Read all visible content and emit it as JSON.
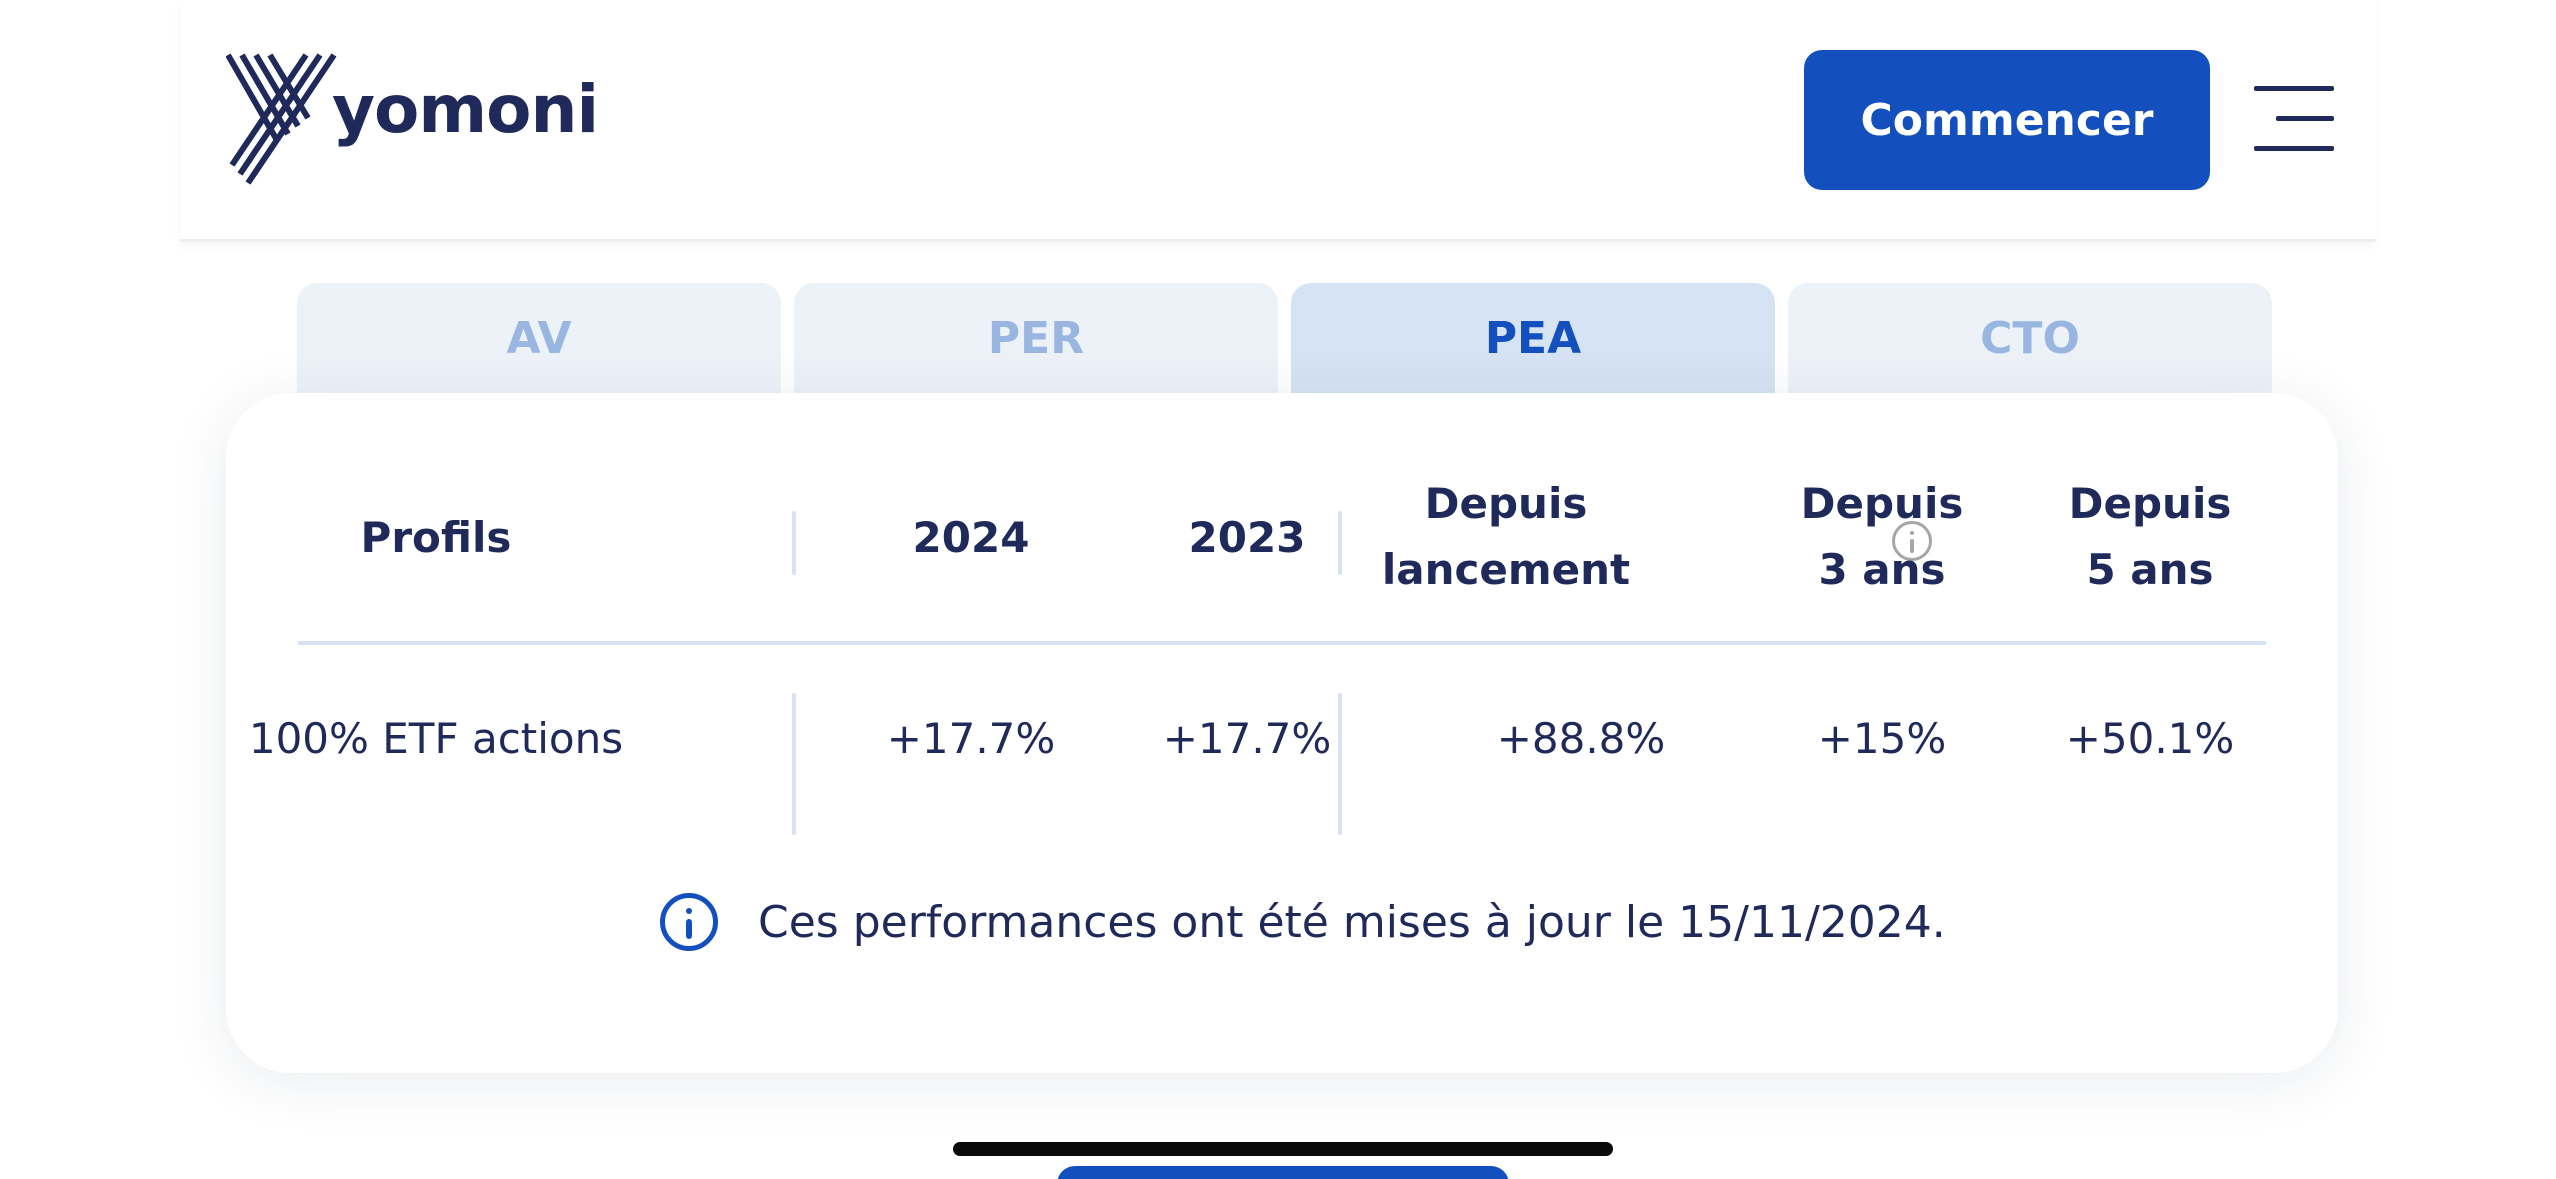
{
  "header": {
    "logo_text": "yomoni",
    "cta_label": "Commencer",
    "menu_icon": "hamburger-icon"
  },
  "tabs": [
    {
      "label": "AV",
      "active": false
    },
    {
      "label": "PER",
      "active": false
    },
    {
      "label": "PEA",
      "active": true
    },
    {
      "label": "CTO",
      "active": false
    }
  ],
  "table": {
    "headers": {
      "profil": "Profils",
      "y2024": "2024",
      "y2023": "2023",
      "lancement_line1": "Depuis",
      "lancement_line2": "lancement",
      "ans3_line1": "Depuis",
      "ans3_line2": "3 ans",
      "ans5_line1": "Depuis",
      "ans5_line2": "5 ans"
    },
    "row": {
      "profil": "100% ETF actions",
      "y2024": "+17.7%",
      "y2023": "+17.7%",
      "lancement": "+88.8%",
      "ans3": "+15%",
      "ans5": "+50.1%"
    }
  },
  "note": {
    "text": "Ces performances ont été mises à jour le 15/11/2024."
  },
  "colors": {
    "primary": "#1350bd",
    "text": "#1f2a5a",
    "tab_bg": "#edf2f9",
    "tab_active_bg": "#d6e3f4",
    "tab_inactive_text": "#98b6df"
  }
}
